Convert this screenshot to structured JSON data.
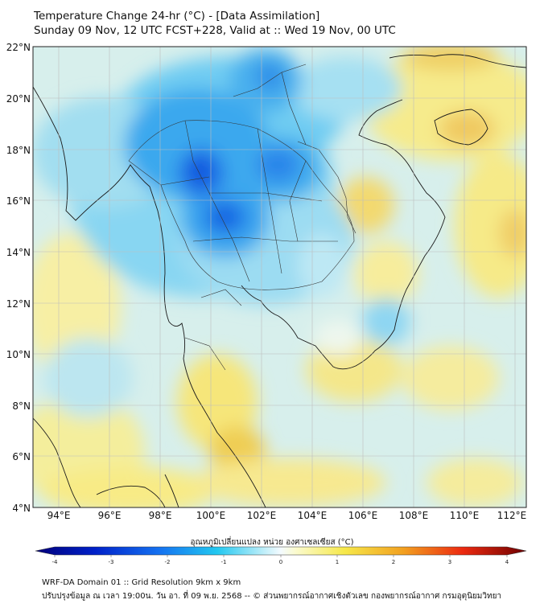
{
  "header": {
    "line1": "Temperature Change 24-hr (°C) - [Data Assimilation]",
    "line2": "Sunday 09 Nov, 12 UTC FCST+228, Valid at :: Wed 19 Nov, 00 UTC"
  },
  "map": {
    "lat_labels": [
      "22°N",
      "20°N",
      "18°N",
      "16°N",
      "14°N",
      "12°N",
      "10°N",
      "8°N",
      "6°N",
      "4°N"
    ],
    "lon_labels": [
      "94°E",
      "96°E",
      "98°E",
      "100°E",
      "102°E",
      "104°E",
      "106°E",
      "108°E",
      "110°E",
      "112°E"
    ]
  },
  "colorbar": {
    "title": "อุณหภูมิเปลี่ยนแปลง หน่วย องศาเซลเซียส (°C)",
    "ticks": [
      "-4",
      "-3",
      "-2",
      "-1",
      "0",
      "1",
      "2",
      "3",
      "4"
    ],
    "min": -4,
    "max": 4
  },
  "footer": {
    "line1": "WRF-DA Domain 01 :: Grid Resolution 9km x 9km",
    "line2": "ปรับปรุงข้อมูล ณ เวลา 19:00น. วัน อา. ที่ 09 พ.ย. 2568 -- © ส่วนพยากรณ์อากาศเชิงตัวเลข กองพยากรณ์อากาศ กรมอุตุนิยมวิทยา"
  }
}
